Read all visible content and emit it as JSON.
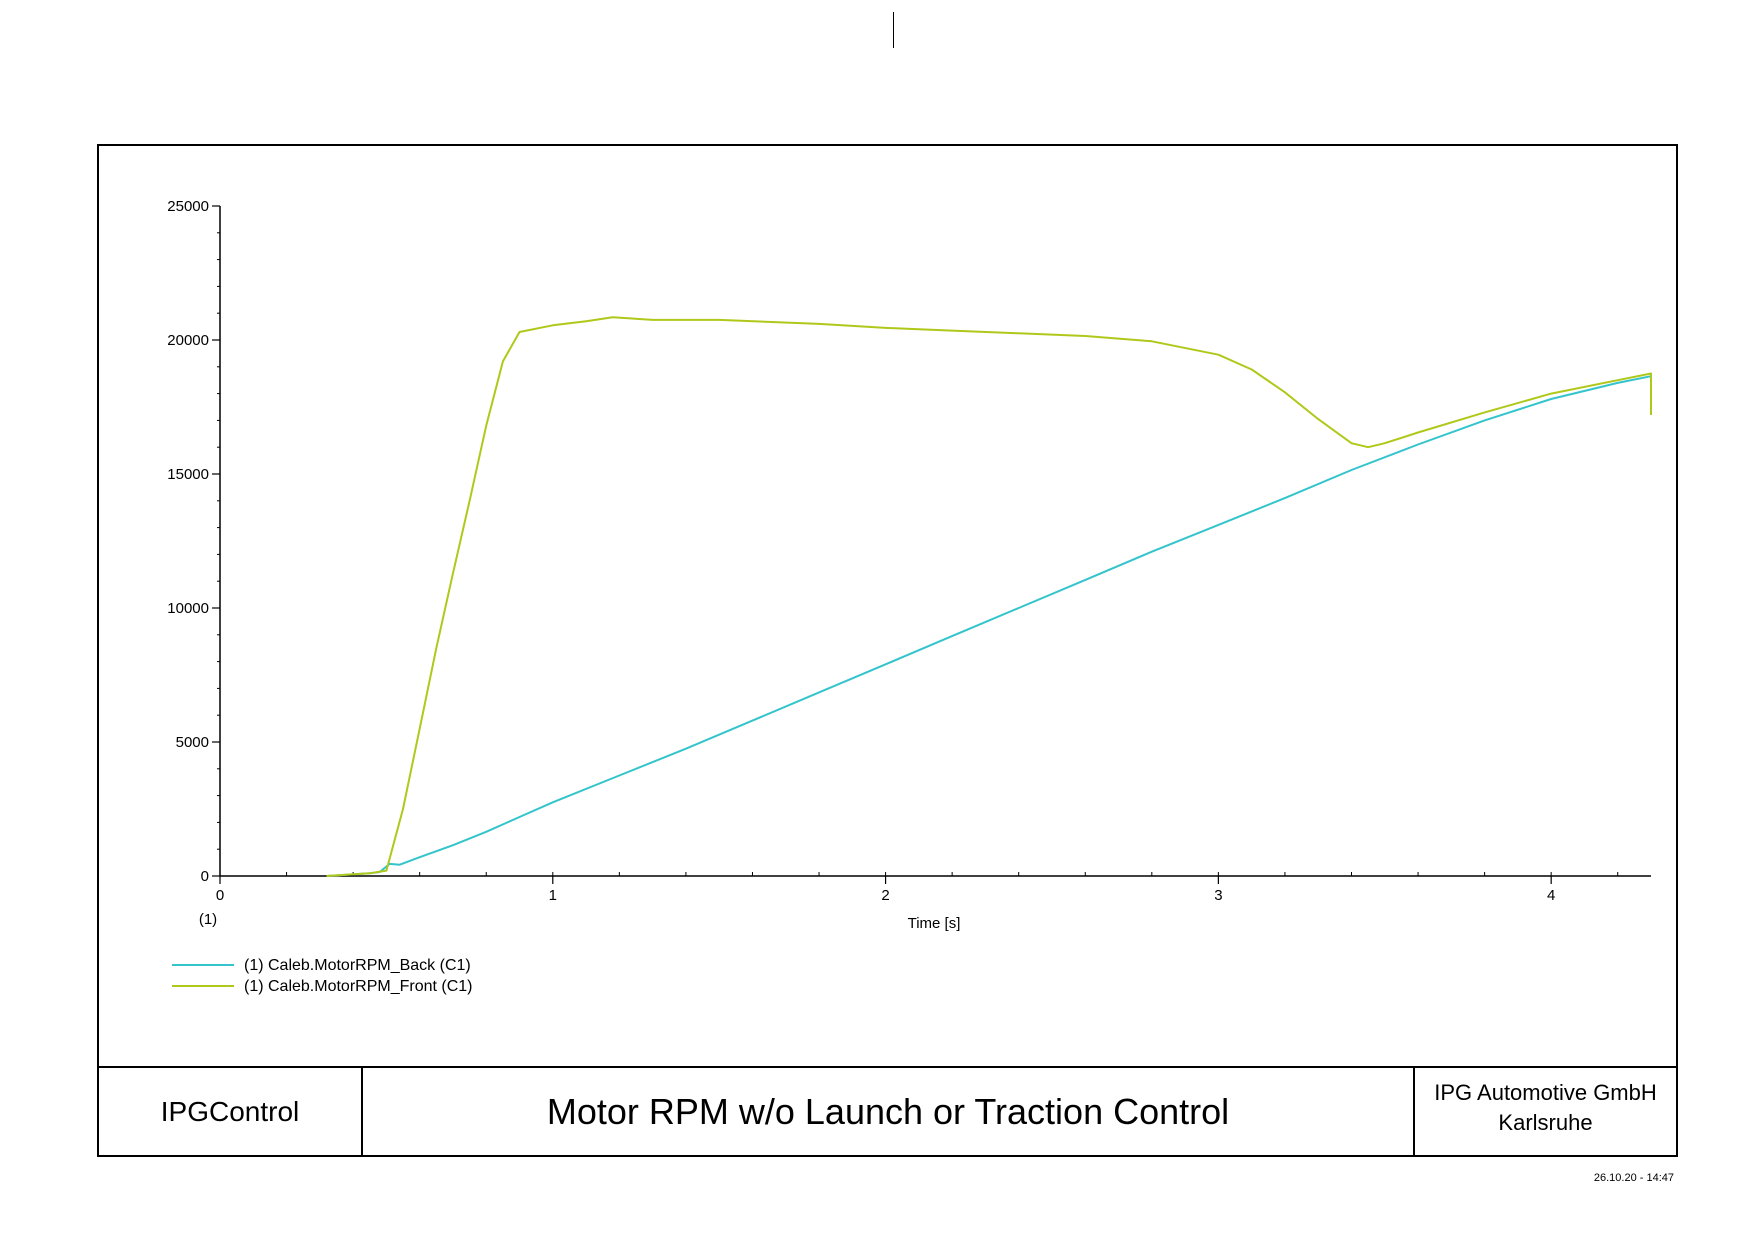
{
  "chart_data": {
    "type": "line",
    "title": "",
    "xlabel": "Time [s]",
    "ylabel": "",
    "xlim": [
      0,
      4.3
    ],
    "ylim": [
      0,
      25000
    ],
    "x_ticks": [
      0,
      1,
      2,
      3,
      4
    ],
    "y_ticks": [
      0,
      5000,
      10000,
      15000,
      20000,
      25000
    ],
    "axis_group_label": "(1)",
    "grid": false,
    "legend_position": "bottom-left",
    "series": [
      {
        "name": "(1) Caleb.MotorRPM_Back (C1)",
        "color": "#33c4cc",
        "points": [
          [
            0.32,
            0
          ],
          [
            0.45,
            100
          ],
          [
            0.48,
            150
          ],
          [
            0.51,
            450
          ],
          [
            0.54,
            420
          ],
          [
            0.6,
            700
          ],
          [
            0.7,
            1150
          ],
          [
            0.8,
            1650
          ],
          [
            0.9,
            2200
          ],
          [
            1.0,
            2750
          ],
          [
            1.2,
            3750
          ],
          [
            1.4,
            4750
          ],
          [
            1.6,
            5800
          ],
          [
            1.8,
            6850
          ],
          [
            2.0,
            7900
          ],
          [
            2.2,
            8950
          ],
          [
            2.4,
            10000
          ],
          [
            2.6,
            11050
          ],
          [
            2.8,
            12100
          ],
          [
            3.0,
            13100
          ],
          [
            3.2,
            14100
          ],
          [
            3.4,
            15150
          ],
          [
            3.6,
            16100
          ],
          [
            3.8,
            17000
          ],
          [
            4.0,
            17800
          ],
          [
            4.2,
            18400
          ],
          [
            4.3,
            18650
          ]
        ]
      },
      {
        "name": "(1) Caleb.MotorRPM_Front (C1)",
        "color": "#b0c81a",
        "points": [
          [
            0.32,
            0
          ],
          [
            0.45,
            100
          ],
          [
            0.5,
            200
          ],
          [
            0.55,
            2500
          ],
          [
            0.6,
            5500
          ],
          [
            0.65,
            8500
          ],
          [
            0.7,
            11300
          ],
          [
            0.75,
            14000
          ],
          [
            0.8,
            16800
          ],
          [
            0.85,
            19200
          ],
          [
            0.9,
            20300
          ],
          [
            1.0,
            20550
          ],
          [
            1.1,
            20700
          ],
          [
            1.18,
            20850
          ],
          [
            1.3,
            20750
          ],
          [
            1.5,
            20750
          ],
          [
            1.8,
            20600
          ],
          [
            2.0,
            20450
          ],
          [
            2.2,
            20350
          ],
          [
            2.4,
            20250
          ],
          [
            2.6,
            20150
          ],
          [
            2.8,
            19950
          ],
          [
            3.0,
            19450
          ],
          [
            3.1,
            18900
          ],
          [
            3.2,
            18050
          ],
          [
            3.3,
            17050
          ],
          [
            3.4,
            16150
          ],
          [
            3.45,
            16000
          ],
          [
            3.5,
            16150
          ],
          [
            3.6,
            16550
          ],
          [
            3.8,
            17300
          ],
          [
            4.0,
            18000
          ],
          [
            4.2,
            18500
          ],
          [
            4.3,
            18750
          ],
          [
            4.3,
            17200
          ]
        ]
      }
    ]
  },
  "title_block": {
    "app": "IPGControl",
    "title": "Motor RPM w/o Launch or Traction Control",
    "company_line1": "IPG Automotive GmbH",
    "company_line2": "Karlsruhe"
  },
  "timestamp": "26.10.20 - 14:47"
}
